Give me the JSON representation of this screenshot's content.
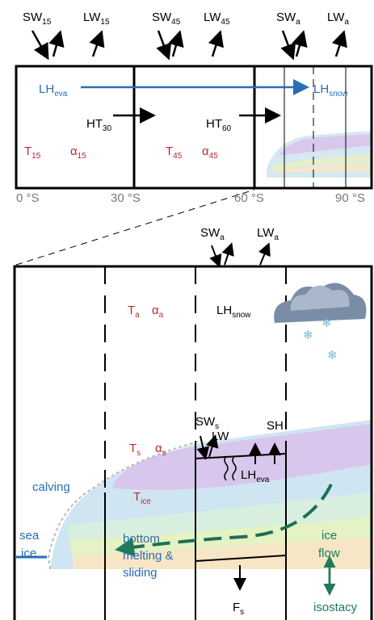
{
  "top": {
    "sw15": {
      "main": "SW",
      "sub": "15"
    },
    "lw15": {
      "main": "LW",
      "sub": "15"
    },
    "sw45": {
      "main": "SW",
      "sub": "45"
    },
    "lw45": {
      "main": "LW",
      "sub": "45"
    },
    "swa": {
      "main": "SW",
      "sub": "a"
    },
    "lwa": {
      "main": "LW",
      "sub": "a"
    },
    "lh_eva": {
      "main": "LH",
      "sub": "eva"
    },
    "lh_snow": {
      "main": "LH",
      "sub": "snow"
    },
    "ht30": {
      "main": "HT",
      "sub": "30"
    },
    "ht60": {
      "main": "HT",
      "sub": "60"
    },
    "t15": {
      "main": "T",
      "sub": "15"
    },
    "a15": {
      "main": "α",
      "sub": "15"
    },
    "t45": {
      "main": "T",
      "sub": "45"
    },
    "a45": {
      "main": "α",
      "sub": "45"
    },
    "axis": [
      "0 °S",
      "30 °S",
      "60 °S",
      "90 °S"
    ]
  },
  "bottom": {
    "swa": {
      "main": "SW",
      "sub": "a"
    },
    "lwa": {
      "main": "LW",
      "sub": "a"
    },
    "ta": {
      "main": "T",
      "sub": "a"
    },
    "aa": {
      "main": "α",
      "sub": "a"
    },
    "lh_snow": {
      "main": "LH",
      "sub": "snow"
    },
    "sws": {
      "main": "SW",
      "sub": "s"
    },
    "lw": "LW",
    "sh": "SH",
    "lh_eva": {
      "main": "LH",
      "sub": "eva"
    },
    "ts": {
      "main": "T",
      "sub": "s"
    },
    "as": {
      "main": "α",
      "sub": "s"
    },
    "tice": {
      "main": "T",
      "sub": "ice"
    },
    "calving": "calving",
    "sea_ice": [
      "sea",
      "ice"
    ],
    "ice_flow": [
      "ice",
      "flow"
    ],
    "bottom_melting": [
      "bottom",
      "melting &",
      "sliding"
    ],
    "fs": {
      "main": "F",
      "sub": "s"
    },
    "isostacy": "isostacy"
  }
}
